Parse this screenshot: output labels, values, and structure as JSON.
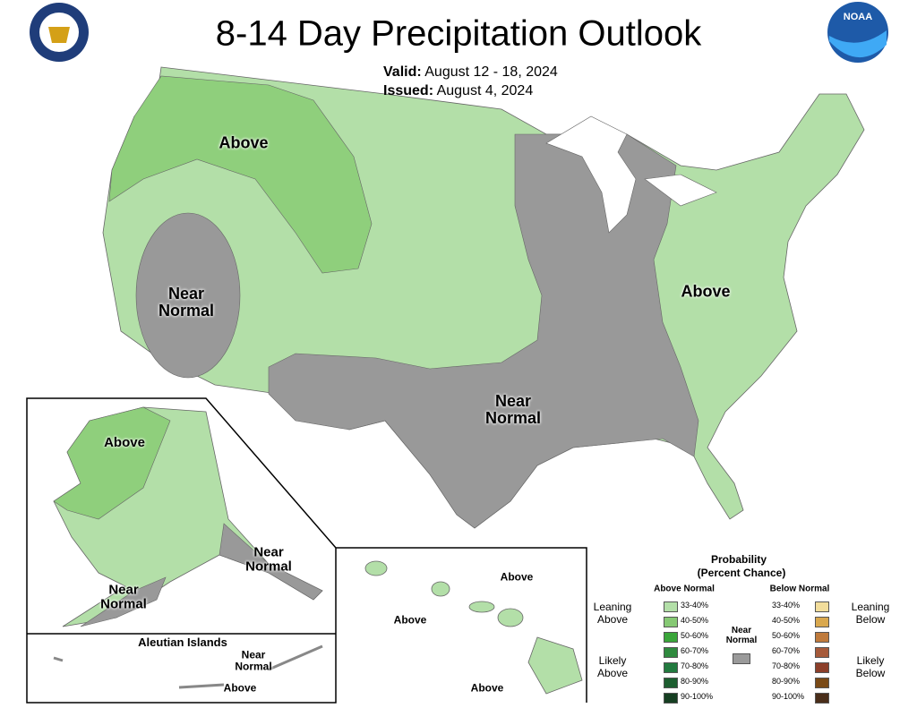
{
  "header": {
    "title": "8-14 Day Precipitation Outlook",
    "valid_label": "Valid:",
    "valid": "August 12 - 18, 2024",
    "issued_label": "Issued:",
    "issued": "August 4, 2024",
    "noaa_logo": "NOAA"
  },
  "map": {
    "labels": [
      "Above",
      "Near Normal",
      "Above",
      "Near Normal"
    ],
    "alaska": {
      "labels": [
        "Above",
        "Near Normal",
        "Near Normal"
      ]
    },
    "aleutian": {
      "title": "Aleutian Islands",
      "labels": [
        "Near Normal",
        "Above"
      ]
    },
    "hawaii": {
      "labels": [
        "Above",
        "Above",
        "Above"
      ]
    }
  },
  "legend": {
    "title": "Probability",
    "subtitle": "(Percent Chance)",
    "above": {
      "header": "Above Normal",
      "leaning": "Leaning Above",
      "likely": "Likely Above",
      "colors": [
        "#b3dfa8",
        "#86c974",
        "#3aa63a",
        "#2f8a3e",
        "#227a3f",
        "#1d5e30",
        "#163f22"
      ]
    },
    "below": {
      "header": "Below Normal",
      "leaning": "Leaning Below",
      "likely": "Likely Below",
      "colors": [
        "#f2dd9b",
        "#d9a84e",
        "#bf7a3c",
        "#a65a3a",
        "#8c3f2a",
        "#7a4a16",
        "#4a2e1a"
      ]
    },
    "near": {
      "label": "Near Normal",
      "color": "#9a9a9a"
    },
    "ranges": [
      "33-40%",
      "40-50%",
      "50-60%",
      "60-70%",
      "70-80%",
      "80-90%",
      "90-100%"
    ]
  }
}
